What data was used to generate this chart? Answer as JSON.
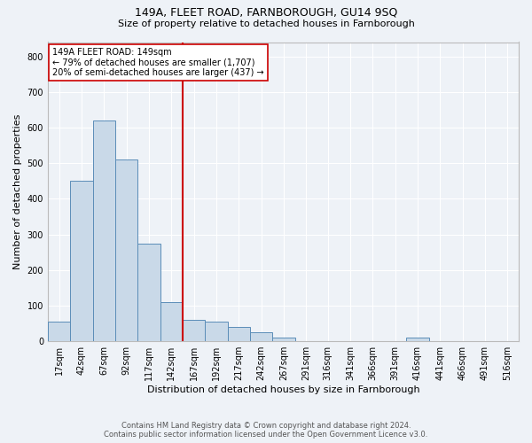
{
  "title_line1": "149A, FLEET ROAD, FARNBOROUGH, GU14 9SQ",
  "title_line2": "Size of property relative to detached houses in Farnborough",
  "xlabel": "Distribution of detached houses by size in Farnborough",
  "ylabel": "Number of detached properties",
  "footer_line1": "Contains HM Land Registry data © Crown copyright and database right 2024.",
  "footer_line2": "Contains public sector information licensed under the Open Government Licence v3.0.",
  "annotation_line1": "149A FLEET ROAD: 149sqm",
  "annotation_line2": "← 79% of detached houses are smaller (1,707)",
  "annotation_line3": "20% of semi-detached houses are larger (437) →",
  "bar_color": "#c9d9e8",
  "bar_edge_color": "#5b8db8",
  "vline_color": "#cc0000",
  "vline_x": 154.5,
  "background_color": "#eef2f7",
  "categories": [
    "17sqm",
    "42sqm",
    "67sqm",
    "92sqm",
    "117sqm",
    "142sqm",
    "167sqm",
    "192sqm",
    "217sqm",
    "242sqm",
    "267sqm",
    "291sqm",
    "316sqm",
    "341sqm",
    "366sqm",
    "391sqm",
    "416sqm",
    "441sqm",
    "466sqm",
    "491sqm",
    "516sqm"
  ],
  "bin_edges": [
    4.5,
    29.5,
    54.5,
    79.5,
    104.5,
    129.5,
    154.5,
    179.5,
    204.5,
    229.5,
    254.5,
    279.5,
    303.5,
    328.5,
    353.5,
    378.5,
    403.5,
    428.5,
    453.5,
    478.5,
    503.5,
    528.5
  ],
  "values": [
    55,
    450,
    620,
    510,
    275,
    110,
    60,
    55,
    40,
    25,
    10,
    0,
    0,
    0,
    0,
    0,
    10,
    0,
    0,
    0,
    0
  ],
  "ylim": [
    0,
    840
  ],
  "yticks": [
    0,
    100,
    200,
    300,
    400,
    500,
    600,
    700,
    800
  ],
  "grid_color": "#ffffff",
  "annotation_box_facecolor": "#ffffff",
  "annotation_box_edgecolor": "#cc0000",
  "spine_color": "#bbbbbb",
  "tick_fontsize": 7,
  "ylabel_fontsize": 8,
  "xlabel_fontsize": 8,
  "title1_fontsize": 9,
  "title2_fontsize": 8,
  "footer_fontsize": 6,
  "annot_fontsize": 7
}
